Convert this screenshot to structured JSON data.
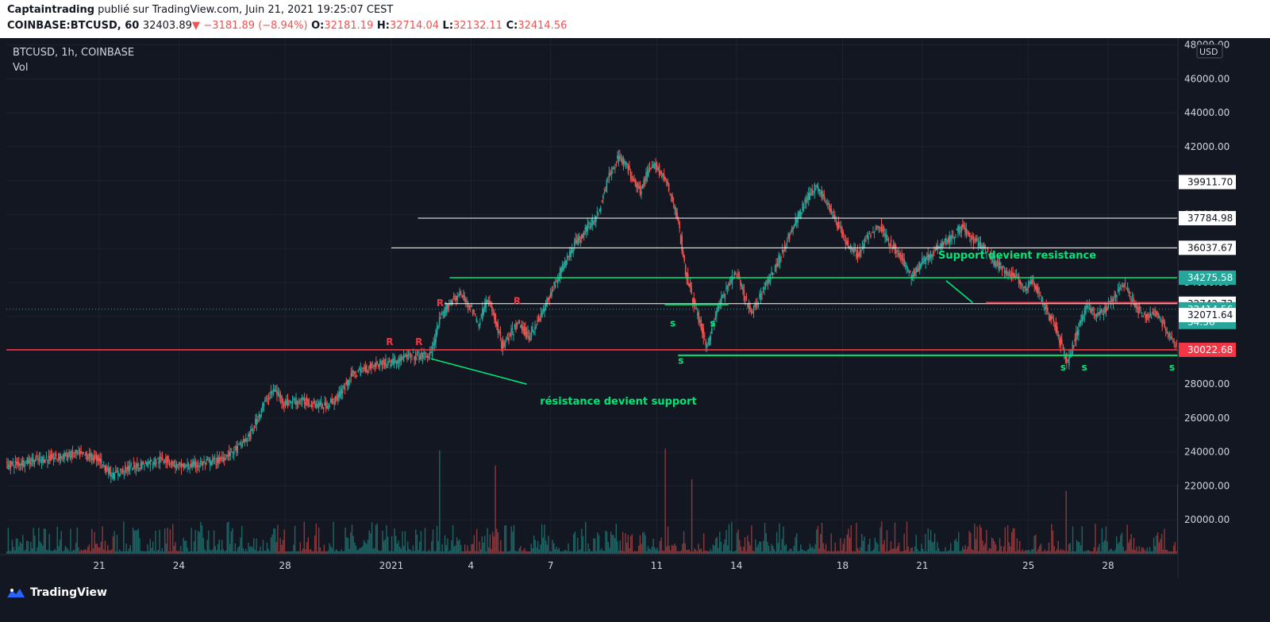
{
  "header": {
    "line1": {
      "author": "Captaintrading",
      "text": " publié sur TradingView.com, Juin 21, 2021 19:25:07 CEST"
    },
    "line2": {
      "symbol": "COINBASE:BTCUSD, 60",
      "last": "32403.89",
      "arrow": "▼",
      "change": "−3181.89 (−8.94%)",
      "o_label": "O:",
      "o": "32181.19",
      "h_label": "H:",
      "h": "32714.04",
      "l_label": "L:",
      "l": "32132.11",
      "c_label": "C:",
      "c": "32414.56"
    }
  },
  "legend": {
    "title": "BTCUSD, 1h, COINBASE",
    "vol": "Vol"
  },
  "footer": {
    "brand": "TradingView"
  },
  "chart_data": {
    "type": "candlestick",
    "currency": "USD",
    "y_ticks": [
      20000,
      22000,
      24000,
      26000,
      28000,
      30000,
      32000,
      34000,
      36000,
      38000,
      40000,
      42000,
      44000,
      46000,
      48000
    ],
    "y_range": [
      18000,
      48400
    ],
    "x_ticks": [
      "21",
      "24",
      "28",
      "2021",
      "4",
      "7",
      "11",
      "14",
      "18",
      "21",
      "25",
      "28"
    ],
    "x_tick_days": [
      -11,
      -8,
      -4,
      0,
      3,
      6,
      10,
      13,
      17,
      20,
      24,
      27
    ],
    "x_range_days": [
      -14.5,
      29.6
    ],
    "price_path": [
      [
        -14.5,
        23200
      ],
      [
        -13.5,
        23500
      ],
      [
        -12.5,
        23700
      ],
      [
        -11.8,
        23900
      ],
      [
        -11.0,
        23600
      ],
      [
        -10.5,
        22600
      ],
      [
        -10.0,
        23000
      ],
      [
        -9.3,
        23300
      ],
      [
        -8.5,
        23600
      ],
      [
        -8.0,
        23100
      ],
      [
        -7.5,
        23200
      ],
      [
        -6.5,
        23500
      ],
      [
        -5.8,
        24200
      ],
      [
        -5.3,
        25000
      ],
      [
        -4.8,
        26800
      ],
      [
        -4.4,
        27700
      ],
      [
        -4.0,
        26900
      ],
      [
        -3.5,
        27000
      ],
      [
        -3.0,
        26900
      ],
      [
        -2.5,
        26700
      ],
      [
        -2.0,
        27200
      ],
      [
        -1.5,
        28500
      ],
      [
        -1.0,
        28900
      ],
      [
        -0.5,
        29200
      ],
      [
        0.0,
        29300
      ],
      [
        0.6,
        29600
      ],
      [
        1.5,
        29700
      ],
      [
        1.8,
        31600
      ],
      [
        2.2,
        32800
      ],
      [
        2.6,
        33300
      ],
      [
        3.0,
        32600
      ],
      [
        3.3,
        31500
      ],
      [
        3.6,
        33000
      ],
      [
        3.9,
        32000
      ],
      [
        4.2,
        30200
      ],
      [
        4.5,
        30900
      ],
      [
        4.8,
        31600
      ],
      [
        5.2,
        30800
      ],
      [
        5.7,
        32200
      ],
      [
        6.1,
        33600
      ],
      [
        6.5,
        35000
      ],
      [
        6.9,
        36200
      ],
      [
        7.3,
        37000
      ],
      [
        7.8,
        38000
      ],
      [
        8.2,
        40200
      ],
      [
        8.6,
        41500
      ],
      [
        9.0,
        40500
      ],
      [
        9.4,
        39400
      ],
      [
        9.7,
        40600
      ],
      [
        10.0,
        40900
      ],
      [
        10.4,
        39800
      ],
      [
        10.8,
        37800
      ],
      [
        11.1,
        34700
      ],
      [
        11.3,
        33400
      ],
      [
        11.6,
        31800
      ],
      [
        11.9,
        30200
      ],
      [
        12.3,
        32400
      ],
      [
        12.7,
        33800
      ],
      [
        13.0,
        34600
      ],
      [
        13.3,
        33200
      ],
      [
        13.6,
        32100
      ],
      [
        14.0,
        33600
      ],
      [
        14.4,
        34600
      ],
      [
        14.8,
        36000
      ],
      [
        15.2,
        37400
      ],
      [
        15.6,
        38700
      ],
      [
        16.0,
        39700
      ],
      [
        16.4,
        38800
      ],
      [
        16.8,
        37500
      ],
      [
        17.2,
        36200
      ],
      [
        17.6,
        35600
      ],
      [
        18.0,
        36800
      ],
      [
        18.4,
        37400
      ],
      [
        18.8,
        36300
      ],
      [
        19.2,
        35500
      ],
      [
        19.6,
        34300
      ],
      [
        20.0,
        35200
      ],
      [
        20.3,
        35600
      ],
      [
        20.7,
        36300
      ],
      [
        21.1,
        36600
      ],
      [
        21.5,
        37300
      ],
      [
        21.9,
        36500
      ],
      [
        22.3,
        36100
      ],
      [
        22.7,
        35200
      ],
      [
        23.1,
        34700
      ],
      [
        23.5,
        34400
      ],
      [
        23.9,
        33600
      ],
      [
        24.2,
        34100
      ],
      [
        24.6,
        32600
      ],
      [
        25.0,
        31500
      ],
      [
        25.3,
        30100
      ],
      [
        25.5,
        29300
      ],
      [
        25.8,
        30800
      ],
      [
        26.2,
        32700
      ],
      [
        26.6,
        32000
      ],
      [
        26.9,
        32400
      ],
      [
        27.2,
        33100
      ],
      [
        27.6,
        34000
      ],
      [
        28.0,
        32700
      ],
      [
        28.4,
        31900
      ],
      [
        28.8,
        32300
      ],
      [
        29.2,
        31200
      ],
      [
        29.6,
        30200
      ],
      [
        30.0,
        29700
      ],
      [
        30.4,
        31100
      ],
      [
        30.8,
        32600
      ],
      [
        31.2,
        33600
      ],
      [
        31.6,
        33100
      ],
      [
        32.0,
        31400
      ],
      [
        32.2,
        34200
      ],
      [
        32.5,
        37400
      ],
      [
        32.7,
        37100
      ],
      [
        32.9,
        34400
      ],
      [
        33.2,
        33300
      ],
      [
        33.5,
        32400
      ]
    ],
    "volume_spikes": [
      [
        1.8,
        24100
      ],
      [
        3.9,
        23200
      ],
      [
        10.3,
        24200
      ],
      [
        11.3,
        22400
      ],
      [
        25.4,
        21700
      ],
      [
        29.6,
        22100
      ],
      [
        32.1,
        22400
      ],
      [
        32.6,
        26400
      ]
    ],
    "horizontal_lines": [
      {
        "price": 37784.98,
        "color": "#ffffff",
        "from_day": 1.0,
        "to_day": 33.6,
        "label": "37784.98"
      },
      {
        "price": 36037.67,
        "color": "#ffffff",
        "from_day": 0.0,
        "to_day": 33.6,
        "label": "36037.67"
      },
      {
        "price": 34275.58,
        "color": "#00e676",
        "from_day": 2.2,
        "to_day": 33.6
      },
      {
        "price": 32742.73,
        "color": "#ffffff",
        "from_day": 2.0,
        "to_day": 33.6,
        "label": "32742.73"
      },
      {
        "price": 30022.68,
        "color": "#f23645",
        "from_day": -14.5,
        "to_day": 33.6,
        "label": "30022.68"
      }
    ],
    "price_labels": [
      {
        "value": "39911.70",
        "price": 39911.7,
        "bg": "#ffffff",
        "fg": "#131722"
      },
      {
        "value": "37784.98",
        "price": 37784.98,
        "bg": "#ffffff",
        "fg": "#131722"
      },
      {
        "value": "36037.67",
        "price": 36037.67,
        "bg": "#ffffff",
        "fg": "#131722"
      },
      {
        "value": "34275.58",
        "price": 34275.58,
        "bg": "#26a69a",
        "fg": "#ffffff"
      },
      {
        "value": "32742.73",
        "price": 32742.73,
        "bg": "#ffffff",
        "fg": "#131722"
      },
      {
        "value": "32414.56",
        "sub": "34:56",
        "price": 32414.56,
        "bg": "#26a69a",
        "fg": "#ffffff"
      },
      {
        "value": "32071.64",
        "price": 32071.64,
        "bg": "#ffffff",
        "fg": "#131722"
      },
      {
        "value": "30022.68",
        "price": 30022.68,
        "bg": "#f23645",
        "fg": "#ffffff"
      }
    ],
    "annotations": [
      {
        "text": "Support devient resistance",
        "color": "#00e676",
        "day": 20.6,
        "price": 35400
      },
      {
        "text": "résistance devient support",
        "color": "#00e676",
        "day": 5.6,
        "price": 26800
      },
      {
        "text": "R",
        "color": "#f23645",
        "day": 1.7,
        "price": 32600
      },
      {
        "text": "R",
        "color": "#f23645",
        "day": 4.6,
        "price": 32700
      },
      {
        "text": "R",
        "color": "#f23645",
        "day": -0.2,
        "price": 30300
      },
      {
        "text": "R",
        "color": "#f23645",
        "day": 0.9,
        "price": 30300
      },
      {
        "text": "s",
        "color": "#00e676",
        "day": 10.5,
        "price": 31400
      },
      {
        "text": "s",
        "color": "#00e676",
        "day": 12.0,
        "price": 31400
      },
      {
        "text": "s",
        "color": "#00e676",
        "day": 10.8,
        "price": 29200
      },
      {
        "text": "s",
        "color": "#00e676",
        "day": 25.2,
        "price": 28800
      },
      {
        "text": "s",
        "color": "#00e676",
        "day": 26.0,
        "price": 28800
      },
      {
        "text": "s",
        "color": "#00e676",
        "day": 29.3,
        "price": 28800
      },
      {
        "text": "s",
        "color": "#00e676",
        "day": 30.0,
        "price": 28800
      }
    ],
    "trendlines": [
      {
        "from": [
          1.5,
          29500
        ],
        "to": [
          5.1,
          28000
        ],
        "color": "#00e676"
      },
      {
        "from": [
          20.9,
          34100
        ],
        "to": [
          21.9,
          32800
        ],
        "color": "#00e676"
      }
    ],
    "extra_segments": [
      {
        "price": 32700,
        "color": "#00e676",
        "from_day": 10.3,
        "to_day": 12.7
      },
      {
        "price": 29700,
        "color": "#00e676",
        "from_day": 10.8,
        "to_day": 30.4
      },
      {
        "price": 32800,
        "color": "#f23645",
        "from_day": 22.4,
        "to_day": 30.0
      }
    ],
    "current_price": 32414.56
  }
}
